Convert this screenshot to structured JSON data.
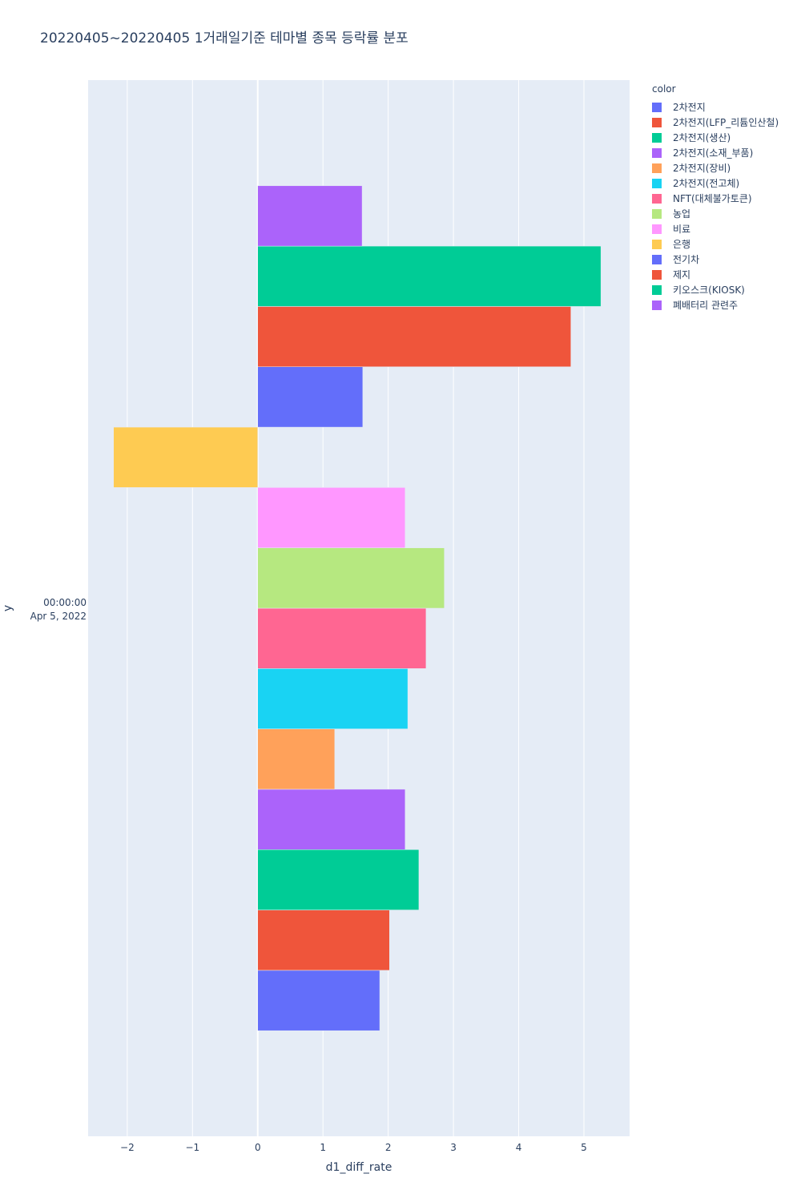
{
  "chart_data": {
    "type": "bar",
    "orientation": "horizontal",
    "barmode": "group",
    "title": "20220405~20220405 1거래일기준 테마별 종목 등락률 분포",
    "xlabel": "d1_diff_rate",
    "ylabel": "y",
    "xlim": [
      -2.6,
      5.7
    ],
    "xticks": [
      -2,
      -1,
      0,
      1,
      2,
      3,
      4,
      5
    ],
    "xtick_labels": [
      "−2",
      "−1",
      "0",
      "1",
      "2",
      "3",
      "4",
      "5"
    ],
    "y_category_label_line1": "00:00:00",
    "y_category_label_line2": "Apr 5, 2022",
    "legend_title": "color",
    "legend_position": "top-right, outside plot",
    "series": [
      {
        "name": "2차전지",
        "value": 1.87,
        "color": "#636efa"
      },
      {
        "name": "2차전지(LFP_리튬인산철)",
        "value": 2.02,
        "color": "#ef553b"
      },
      {
        "name": "2차전지(생산)",
        "value": 2.47,
        "color": "#00cc96"
      },
      {
        "name": "2차전지(소재_부품)",
        "value": 2.26,
        "color": "#ab63fa"
      },
      {
        "name": "2차전지(장비)",
        "value": 1.18,
        "color": "#ffa15a"
      },
      {
        "name": "2차전지(전고체)",
        "value": 2.3,
        "color": "#19d3f3"
      },
      {
        "name": "NFT(대체불가토큰)",
        "value": 2.58,
        "color": "#ff6692"
      },
      {
        "name": "농업",
        "value": 2.86,
        "color": "#b6e880"
      },
      {
        "name": "비료",
        "value": 2.26,
        "color": "#ff97ff"
      },
      {
        "name": "은행",
        "value": -2.21,
        "color": "#fecb52"
      },
      {
        "name": "전기차",
        "value": 1.61,
        "color": "#636efa"
      },
      {
        "name": "제지",
        "value": 4.8,
        "color": "#ef553b"
      },
      {
        "name": "키오스크(KIOSK)",
        "value": 5.26,
        "color": "#00cc96"
      },
      {
        "name": "폐배터리 관련주",
        "value": 1.6,
        "color": "#ab63fa"
      }
    ]
  }
}
